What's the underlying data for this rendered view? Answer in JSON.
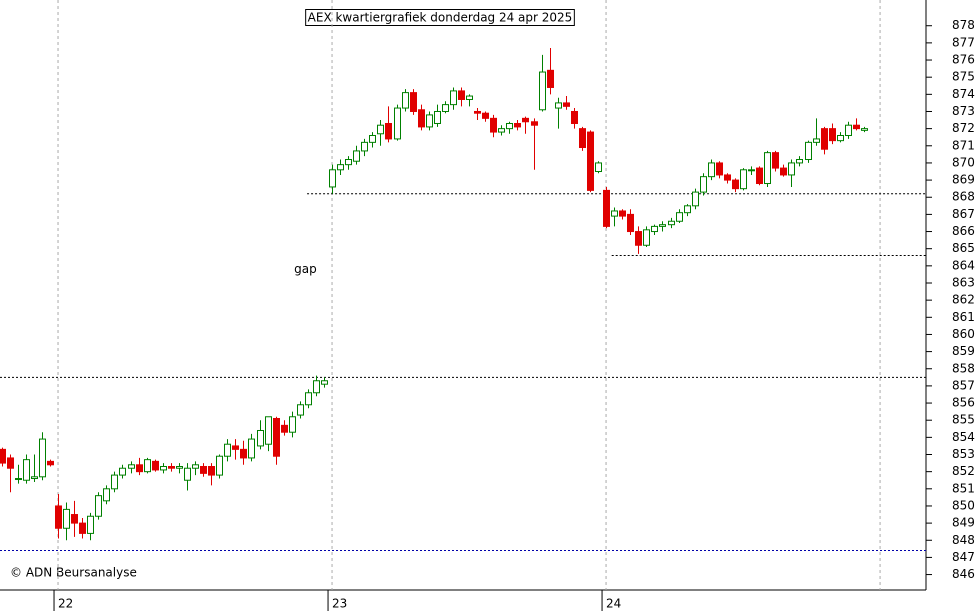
{
  "chart_data": {
    "type": "candlestick",
    "title": "AEX kwartiergrafiek donderdag 24 apr 2025",
    "credit": "© ADN Beursanalyse",
    "annotations": [
      {
        "text": "gap",
        "x": 29.3,
        "y": 863.8
      }
    ],
    "up_color": "#008000",
    "down_color": "#e00000",
    "x": [
      -7,
      -6,
      -5,
      -4,
      -3,
      -2,
      -1,
      0,
      1,
      2,
      3,
      4,
      5,
      6,
      7,
      8,
      9,
      10,
      11,
      12,
      13,
      14,
      15,
      16,
      17,
      18,
      19,
      20,
      21,
      22,
      23,
      24,
      25,
      26,
      27,
      28,
      29,
      30,
      31,
      32,
      33,
      34,
      35,
      36,
      37,
      38,
      39,
      40,
      41,
      42,
      43,
      44,
      45,
      46,
      47,
      48,
      49,
      50,
      51,
      52,
      53,
      54,
      55,
      56,
      57,
      58,
      59,
      60,
      61,
      62,
      63,
      64,
      65,
      66,
      67,
      68,
      69,
      70,
      71,
      72,
      73,
      74,
      75,
      76,
      77,
      78,
      79,
      80,
      81,
      82,
      83,
      84,
      85,
      86,
      87,
      88,
      89,
      90,
      91,
      92,
      93,
      94,
      95,
      96,
      97,
      98,
      99,
      100
    ],
    "open": [
      853.3,
      852.8,
      851.6,
      851.5,
      851.6,
      851.7,
      852.6,
      850.0,
      848.7,
      849.5,
      849.0,
      848.4,
      849.4,
      850.3,
      851.0,
      851.8,
      852.2,
      852.4,
      852.0,
      852.6,
      852.1,
      852.3,
      852.2,
      851.5,
      852.2,
      852.3,
      852.3,
      851.8,
      852.9,
      853.5,
      853.3,
      852.8,
      853.5,
      853.6,
      855.1,
      854.7,
      854.3,
      855.3,
      855.9,
      856.6,
      857.1,
      868.6,
      869.6,
      869.9,
      870.1,
      870.7,
      871.2,
      871.7,
      872.3,
      871.4,
      873.2,
      874.1,
      873.1,
      872.1,
      872.3,
      873.0,
      873.4,
      874.2,
      873.7,
      873.0,
      872.9,
      872.6,
      871.8,
      872.0,
      872.3,
      872.6,
      872.4,
      873.1,
      875.4,
      873.2,
      873.5,
      873.0,
      872.0,
      871.8,
      869.5,
      868.4,
      866.9,
      867.2,
      867.0,
      866.0,
      865.2,
      866.0,
      866.3,
      866.4,
      866.6,
      867.1,
      867.5,
      868.3,
      869.2,
      870.0,
      869.3,
      869.0,
      868.5,
      869.6,
      869.7,
      868.8,
      870.6,
      869.7,
      869.3,
      870.0,
      870.2,
      871.2,
      872.0,
      872.0,
      871.3,
      871.6,
      872.2,
      871.9
    ],
    "high": [
      853.4,
      853.0,
      852.4,
      853.0,
      853.0,
      854.3,
      852.7,
      850.7,
      850.2,
      850.3,
      849.3,
      849.6,
      850.8,
      851.2,
      852.0,
      852.4,
      852.6,
      852.8,
      852.8,
      852.7,
      852.5,
      852.5,
      852.5,
      852.5,
      852.6,
      852.5,
      852.5,
      853.0,
      853.9,
      853.9,
      853.8,
      854.2,
      855.0,
      855.2,
      855.2,
      855.0,
      855.5,
      856.1,
      856.8,
      857.6,
      857.5,
      869.9,
      870.2,
      870.4,
      871.0,
      871.4,
      871.8,
      872.5,
      873.3,
      873.4,
      874.3,
      874.3,
      873.4,
      873.0,
      873.4,
      873.6,
      874.4,
      874.4,
      874.0,
      873.2,
      873.0,
      872.8,
      872.2,
      872.4,
      872.5,
      872.7,
      872.6,
      876.3,
      876.7,
      873.8,
      873.9,
      873.2,
      872.1,
      871.9,
      870.1,
      868.6,
      867.4,
      867.3,
      867.3,
      866.3,
      866.3,
      866.4,
      866.6,
      866.8,
      867.3,
      867.6,
      868.5,
      869.4,
      870.2,
      870.1,
      869.4,
      869.1,
      869.7,
      869.8,
      869.8,
      870.7,
      870.7,
      869.9,
      870.2,
      870.4,
      871.3,
      872.6,
      872.1,
      872.3,
      871.8,
      872.4,
      872.6,
      872.1
    ],
    "low": [
      852.3,
      850.8,
      851.3,
      851.3,
      851.4,
      851.5,
      852.3,
      848.1,
      848.0,
      848.2,
      848.1,
      848.0,
      849.2,
      850.1,
      850.8,
      851.6,
      851.9,
      851.8,
      851.9,
      852.0,
      851.9,
      852.0,
      851.9,
      850.9,
      851.8,
      851.7,
      851.2,
      851.6,
      852.6,
      852.7,
      852.4,
      852.6,
      853.3,
      853.2,
      852.4,
      854.1,
      854.0,
      855.1,
      855.7,
      856.4,
      856.9,
      868.2,
      869.3,
      869.6,
      869.9,
      870.4,
      870.9,
      871.0,
      871.2,
      871.3,
      873.0,
      872.8,
      871.9,
      871.9,
      872.1,
      872.9,
      873.1,
      873.3,
      873.3,
      872.5,
      872.4,
      871.5,
      871.6,
      871.7,
      871.9,
      871.7,
      869.6,
      873.0,
      874.0,
      872.0,
      873.1,
      872.0,
      870.7,
      868.3,
      869.4,
      866.2,
      866.3,
      866.7,
      865.8,
      864.7,
      865.1,
      865.8,
      866.0,
      866.2,
      866.5,
      866.9,
      867.3,
      868.1,
      869.0,
      869.1,
      868.8,
      868.3,
      868.4,
      869.3,
      868.7,
      868.6,
      869.5,
      869.2,
      868.6,
      869.8,
      870.0,
      871.0,
      870.5,
      871.1,
      871.2,
      871.4,
      871.9,
      871.8
    ],
    "close": [
      852.5,
      852.2,
      851.6,
      852.7,
      851.7,
      853.9,
      852.4,
      848.7,
      849.8,
      849.0,
      848.4,
      849.4,
      850.6,
      851.0,
      851.8,
      852.2,
      852.4,
      852.0,
      852.7,
      852.1,
      852.3,
      852.2,
      852.3,
      852.2,
      852.4,
      851.9,
      851.8,
      852.9,
      853.6,
      853.3,
      852.8,
      853.9,
      854.4,
      855.2,
      852.9,
      854.3,
      855.2,
      855.9,
      856.6,
      857.3,
      857.3,
      869.6,
      869.9,
      870.2,
      870.7,
      871.2,
      871.6,
      872.2,
      871.4,
      873.2,
      874.1,
      873.0,
      872.1,
      872.8,
      873.0,
      873.4,
      874.2,
      873.7,
      873.9,
      872.9,
      872.6,
      871.8,
      872.0,
      872.3,
      872.1,
      872.4,
      872.2,
      875.3,
      874.4,
      873.5,
      873.3,
      872.3,
      870.9,
      868.4,
      870.0,
      866.3,
      867.2,
      866.9,
      866.0,
      865.2,
      866.1,
      866.3,
      866.4,
      866.6,
      867.1,
      867.5,
      868.3,
      869.2,
      870.0,
      869.3,
      869.0,
      868.5,
      869.6,
      869.6,
      868.8,
      870.6,
      869.7,
      869.3,
      870.0,
      870.2,
      871.2,
      871.4,
      870.8,
      871.3,
      871.6,
      872.2,
      872.0,
      872.0
    ],
    "xlim": [
      -7.2,
      107.7
    ],
    "xticks": [
      {
        "value": 0,
        "label": "22"
      },
      {
        "value": 34,
        "label": "23"
      },
      {
        "value": 68,
        "label": "24"
      }
    ],
    "xgrid": [
      0,
      34,
      68,
      102
    ],
    "ylim": [
      845.1,
      879.5
    ],
    "yticks": [
      846,
      847,
      848,
      849,
      850,
      851,
      852,
      853,
      854,
      855,
      856,
      857,
      858,
      859,
      860,
      861,
      862,
      863,
      864,
      865,
      866,
      867,
      868,
      869,
      870,
      871,
      872,
      873,
      874,
      875,
      876,
      877,
      878
    ],
    "hlines": [
      {
        "y": 868.2,
        "from": 30.9,
        "color": "#000000"
      },
      {
        "y": 864.6,
        "from": 68.7,
        "color": "#000000"
      },
      {
        "y": 857.5,
        "from": -7.2,
        "color": "#000000"
      },
      {
        "y": 847.4,
        "from": -7.2,
        "color": "#0000aa"
      }
    ]
  }
}
